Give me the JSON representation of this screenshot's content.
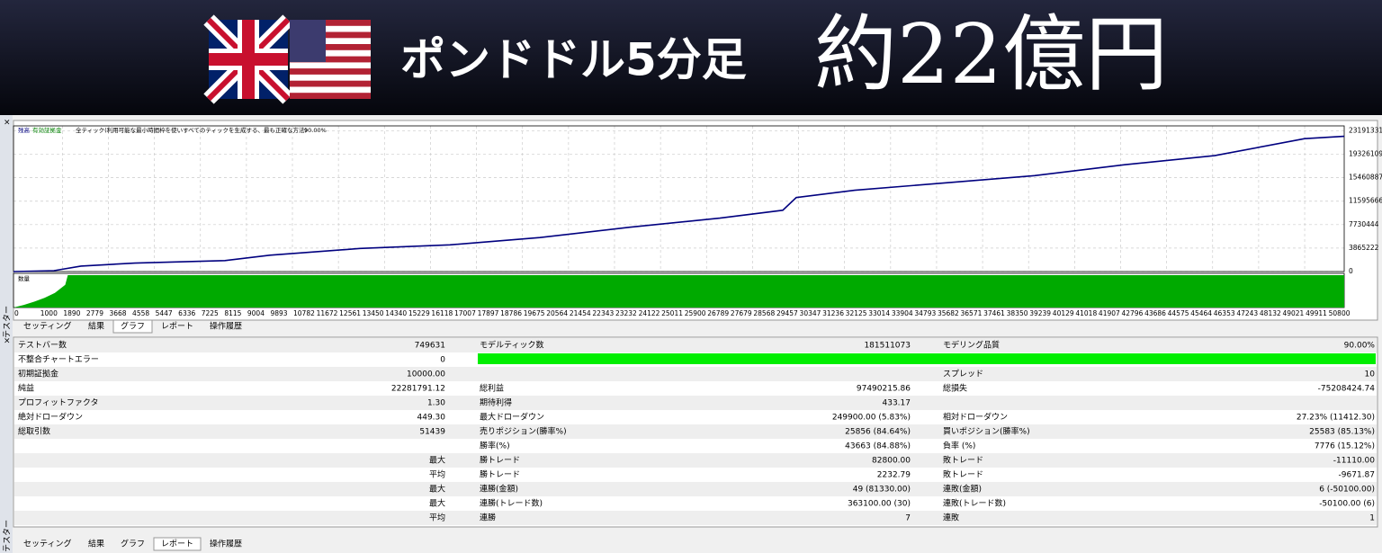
{
  "header": {
    "title": "ポンドドル5分足",
    "amount": "約22億円"
  },
  "side_label": "テスター",
  "close": "×",
  "chart_data": {
    "type": "line",
    "legend": {
      "balance": "残高",
      "equity": "有効証拠金",
      "model": "全ティック(利用可能な最小時間枠を使いすべてのティックを生成する、最も正確な方法)",
      "quality": "90.00%"
    },
    "x": [
      0,
      1565,
      2608,
      4695,
      8173,
      9912,
      13390,
      16868,
      20346,
      23824,
      27302,
      29737,
      30258,
      32519,
      35997,
      39475,
      42953,
      46431,
      49909,
      51439
    ],
    "series": [
      {
        "name": "残高",
        "color": "#00007f",
        "values": [
          0,
          150000,
          900000,
          1400000,
          1800000,
          2700000,
          3800000,
          4400000,
          5600000,
          7300000,
          8800000,
          10100000,
          12200000,
          13400000,
          14600000,
          15800000,
          17600000,
          19100000,
          21900000,
          22290000
        ]
      }
    ],
    "xlim": [
      0,
      51439
    ],
    "xticks": [
      0,
      1000,
      1890,
      2779,
      3668,
      4558,
      5447,
      6336,
      7225,
      8115,
      9004,
      9893,
      10782,
      11672,
      12561,
      13450,
      14340,
      15229,
      16118,
      17007,
      17897,
      18786,
      19675,
      20564,
      21454,
      22343,
      23232,
      24122,
      25011,
      25900,
      26789,
      27679,
      28568,
      29457,
      30347,
      31236,
      32125,
      33014,
      33904,
      34793,
      35682,
      36571,
      37461,
      38350,
      39239,
      40129,
      41018,
      41907,
      42796,
      43686,
      44575,
      45464,
      46353,
      47243,
      48132,
      49021,
      49911,
      50800
    ],
    "ylim": [
      0,
      24000000
    ],
    "yticks": [
      0,
      3865222,
      7730444,
      11595666,
      15460887,
      19326109,
      23191331
    ],
    "grid": true,
    "volume": {
      "name": "数量",
      "color": "#00aa00",
      "x": [
        0,
        400,
        800,
        1200,
        1600,
        2000,
        2100,
        51439
      ],
      "values": [
        0,
        8,
        18,
        30,
        45,
        70,
        100,
        100
      ],
      "ylim": [
        0,
        100
      ]
    }
  },
  "top_tabs": {
    "items": [
      "セッティング",
      "結果",
      "グラフ",
      "レポート",
      "操作履歴"
    ],
    "active": 2
  },
  "bottom_tabs": {
    "items": [
      "セッティング",
      "結果",
      "グラフ",
      "レポート",
      "操作履歴"
    ],
    "active": 3
  },
  "report": {
    "rows": [
      [
        "テストバー数",
        "749631",
        "モデルティック数",
        "181511073",
        "モデリング品質",
        "90.00%"
      ],
      [
        "不整合チャートエラー",
        "0",
        null,
        null,
        null,
        null
      ],
      [
        "初期証拠金",
        "10000.00",
        null,
        null,
        "スプレッド",
        "10"
      ],
      [
        "純益",
        "22281791.12",
        "総利益",
        "97490215.86",
        "総損失",
        "-75208424.74"
      ],
      [
        "プロフィットファクタ",
        "1.30",
        "期待利得",
        "433.17",
        null,
        null
      ],
      [
        "絶対ドローダウン",
        "449.30",
        "最大ドローダウン",
        "249900.00 (5.83%)",
        "相対ドローダウン",
        "27.23% (11412.30)"
      ],
      [
        "総取引数",
        "51439",
        "売りポジション(勝率%)",
        "25856 (84.64%)",
        "買いポジション(勝率%)",
        "25583 (85.13%)"
      ],
      [
        null,
        null,
        "勝率(%)",
        "43663 (84.88%)",
        "負率 (%)",
        "7776 (15.12%)"
      ],
      [
        null,
        "最大",
        "勝トレード",
        "82800.00",
        "敗トレード",
        "-11110.00"
      ],
      [
        null,
        "平均",
        "勝トレード",
        "2232.79",
        "敗トレード",
        "-9671.87"
      ],
      [
        null,
        "最大",
        "連勝(金額)",
        "49 (81330.00)",
        "連敗(金額)",
        "6 (-50100.00)"
      ],
      [
        null,
        "最大",
        "連勝(トレード数)",
        "363100.00 (30)",
        "連敗(トレード数)",
        "-50100.00 (6)"
      ],
      [
        null,
        "平均",
        "連勝",
        "7",
        "連敗",
        "1"
      ]
    ]
  }
}
